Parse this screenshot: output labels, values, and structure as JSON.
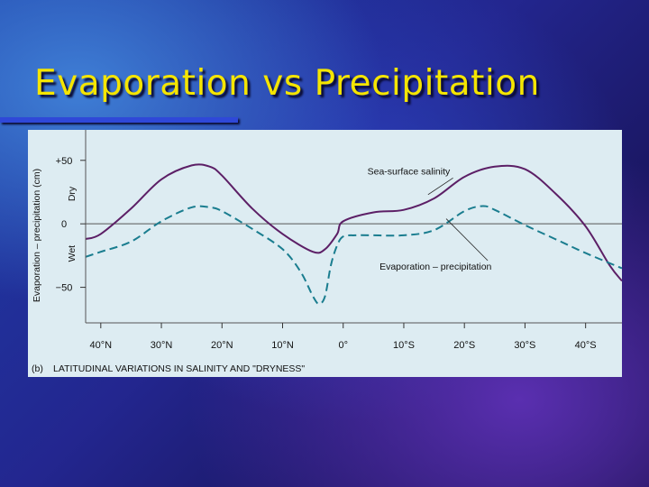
{
  "slide": {
    "title": "Evaporation vs Precipitation"
  },
  "colors": {
    "salinity": "#5c1f66",
    "evap_minus_precip": "#1a7d8f",
    "title": "#f5e500",
    "panel": "#ddecf2"
  },
  "chart_data": {
    "type": "line",
    "panel_label": "(b)",
    "caption": "LATITUDINAL VARIATIONS IN SALINITY AND \"DRYNESS\"",
    "ylabel": "Evaporation – precipitation (cm)",
    "side_labels": {
      "upper": "Dry",
      "lower": "Wet"
    },
    "xlim": [
      -42.5,
      46
    ],
    "ylim": [
      -78,
      74
    ],
    "xticks": [
      {
        "value": -40,
        "label": "40°N"
      },
      {
        "value": -30,
        "label": "30°N"
      },
      {
        "value": -20,
        "label": "20°N"
      },
      {
        "value": -10,
        "label": "10°N"
      },
      {
        "value": 0,
        "label": "0°"
      },
      {
        "value": 10,
        "label": "10°S"
      },
      {
        "value": 20,
        "label": "20°S"
      },
      {
        "value": 30,
        "label": "30°S"
      },
      {
        "value": 40,
        "label": "40°S"
      }
    ],
    "yticks": [
      {
        "value": 50,
        "label": "+50"
      },
      {
        "value": 0,
        "label": "0"
      },
      {
        "value": -50,
        "label": "−50"
      }
    ],
    "zero_line": true,
    "series": [
      {
        "name": "Sea-surface salinity",
        "style": "solid",
        "x": [
          -42.5,
          -40,
          -35,
          -30,
          -25,
          -22,
          -20,
          -15,
          -10,
          -5,
          -3,
          -1,
          0,
          5,
          10,
          15,
          20,
          25,
          30,
          35,
          40,
          44,
          46
        ],
        "y": [
          -12,
          -8,
          12,
          35,
          46,
          45,
          38,
          12,
          -8,
          -22,
          -20,
          -8,
          2,
          9,
          11,
          20,
          37,
          45,
          43,
          24,
          -2,
          -33,
          -45
        ]
      },
      {
        "name": "Evaporation – precipitation",
        "style": "dashed",
        "x": [
          -42.5,
          -40,
          -35,
          -30,
          -25,
          -22,
          -20,
          -15,
          -10,
          -7,
          -5,
          -4,
          -3,
          -2,
          -1,
          0,
          2,
          5,
          10,
          15,
          20,
          23,
          25,
          30,
          35,
          40,
          46
        ],
        "y": [
          -26,
          -22,
          -14,
          2,
          13,
          13,
          10,
          -4,
          -20,
          -38,
          -57,
          -63,
          -57,
          -32,
          -17,
          -10,
          -9,
          -9,
          -9,
          -5,
          10,
          14,
          11,
          -1,
          -12,
          -23,
          -35
        ]
      }
    ],
    "annotations": [
      {
        "text": "Sea-surface salinity",
        "series": 0,
        "text_x": 4,
        "text_y": 39,
        "point_x": 14,
        "point_y": 23
      },
      {
        "text": "Evaporation – precipitation",
        "series": 1,
        "text_x": 6,
        "text_y": -36,
        "point_x": 17,
        "point_y": 4
      }
    ]
  }
}
